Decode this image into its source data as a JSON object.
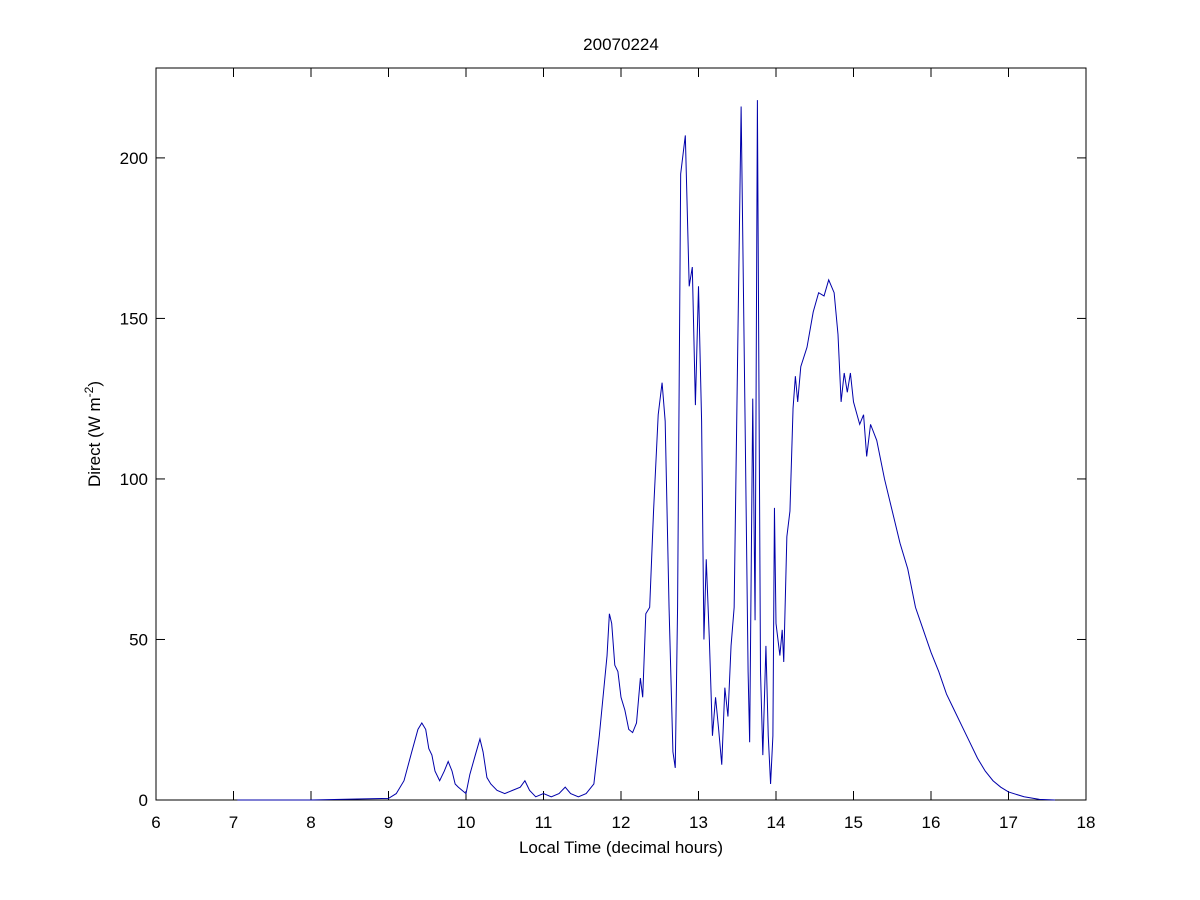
{
  "chart_data": {
    "type": "line",
    "title": "20070224",
    "xlabel": "Local Time (decimal hours)",
    "ylabel_parts": [
      "Direct (W m",
      "-2",
      ")"
    ],
    "xlim": [
      6,
      18
    ],
    "xticks": [
      6,
      7,
      8,
      9,
      10,
      11,
      12,
      13,
      14,
      15,
      16,
      17,
      18
    ],
    "ylim": [
      0,
      228
    ],
    "yticks": [
      0,
      50,
      100,
      150,
      200
    ],
    "series": [
      {
        "color": "#0000aa",
        "x": [
          7.05,
          8.0,
          8.6,
          9.0,
          9.1,
          9.2,
          9.3,
          9.38,
          9.43,
          9.48,
          9.52,
          9.56,
          9.6,
          9.66,
          9.72,
          9.77,
          9.82,
          9.86,
          9.9,
          9.95,
          10.0,
          10.05,
          10.12,
          10.18,
          10.22,
          10.27,
          10.32,
          10.4,
          10.5,
          10.6,
          10.7,
          10.76,
          10.82,
          10.9,
          11.0,
          11.1,
          11.2,
          11.28,
          11.35,
          11.45,
          11.55,
          11.65,
          11.72,
          11.78,
          11.82,
          11.85,
          11.88,
          11.92,
          11.96,
          12.0,
          12.05,
          12.1,
          12.15,
          12.2,
          12.25,
          12.28,
          12.32,
          12.37,
          12.42,
          12.48,
          12.53,
          12.57,
          12.62,
          12.67,
          12.7,
          12.73,
          12.77,
          12.83,
          12.88,
          12.92,
          12.96,
          13.0,
          13.04,
          13.07,
          13.1,
          13.14,
          13.18,
          13.22,
          13.26,
          13.3,
          13.34,
          13.38,
          13.42,
          13.46,
          13.5,
          13.55,
          13.6,
          13.64,
          13.66,
          13.7,
          13.73,
          13.76,
          13.8,
          13.83,
          13.87,
          13.9,
          13.93,
          13.96,
          13.98,
          14.0,
          14.05,
          14.08,
          14.1,
          14.14,
          14.18,
          14.22,
          14.25,
          14.28,
          14.32,
          14.4,
          14.48,
          14.55,
          14.62,
          14.68,
          14.75,
          14.8,
          14.84,
          14.88,
          14.92,
          14.96,
          15.0,
          15.08,
          15.13,
          15.17,
          15.22,
          15.3,
          15.4,
          15.5,
          15.6,
          15.7,
          15.8,
          15.9,
          16.0,
          16.1,
          16.2,
          16.3,
          16.4,
          16.5,
          16.6,
          16.7,
          16.8,
          16.9,
          17.0,
          17.2,
          17.4,
          17.6
        ],
        "values": [
          0,
          0,
          0.3,
          0.5,
          2,
          6,
          15,
          22,
          24,
          22,
          16,
          14,
          9,
          6,
          9,
          12,
          9,
          5,
          4,
          3,
          2,
          8,
          14,
          19,
          15,
          7,
          5,
          3,
          2,
          3,
          4,
          6,
          3,
          1,
          2,
          1,
          2,
          4,
          2,
          1,
          2,
          5,
          20,
          35,
          45,
          58,
          55,
          42,
          40,
          32,
          28,
          22,
          21,
          24,
          38,
          32,
          58,
          60,
          90,
          120,
          130,
          118,
          60,
          15,
          10,
          60,
          195,
          207,
          160,
          166,
          123,
          160,
          118,
          50,
          75,
          50,
          20,
          32,
          22,
          11,
          35,
          26,
          48,
          60,
          130,
          216,
          120,
          40,
          18,
          125,
          56,
          218,
          40,
          14,
          48,
          20,
          5,
          20,
          91,
          55,
          45,
          53,
          43,
          82,
          90,
          122,
          132,
          124,
          135,
          141,
          152,
          158,
          157,
          162,
          158,
          145,
          124,
          133,
          127,
          133,
          124,
          117,
          120,
          107,
          117,
          112,
          100,
          90,
          80,
          72,
          60,
          53,
          46,
          40,
          33,
          28,
          23,
          18,
          13,
          9,
          6,
          4,
          2.5,
          1,
          0.2,
          0
        ]
      }
    ]
  }
}
